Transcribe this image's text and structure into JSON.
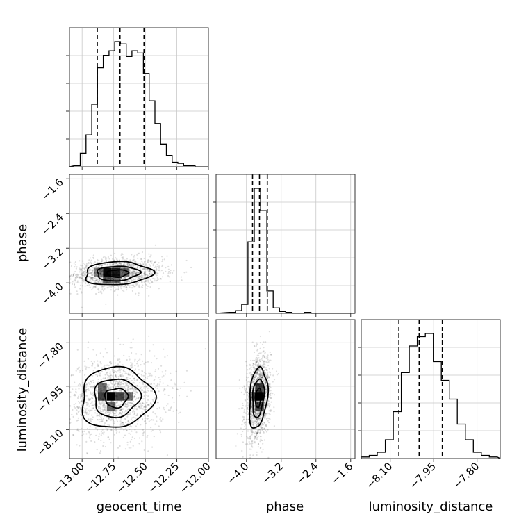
{
  "chart_data": {
    "type": "corner",
    "parameters": [
      {
        "name": "geocent_time",
        "label": "geocent_time",
        "range": [
          -13.1,
          -12.0
        ],
        "ticks": [
          -13.0,
          -12.75,
          -12.5,
          -12.25,
          -12.0
        ],
        "tick_labels": [
          "−13.00",
          "−12.75",
          "−12.50",
          "−12.25",
          "−12.00"
        ]
      },
      {
        "name": "phase",
        "label": "phase",
        "range": [
          -4.7,
          -1.5
        ],
        "ticks": [
          -4.0,
          -3.2,
          -2.4,
          -1.6
        ],
        "tick_labels": [
          "−4.0",
          "−3.2",
          "−2.4",
          "−1.6"
        ]
      },
      {
        "name": "luminosity_distance",
        "label": "luminosity_distance",
        "range": [
          -8.2,
          -7.72
        ],
        "ticks": [
          -8.1,
          -7.95,
          -7.8
        ],
        "tick_labels": [
          "−8.10",
          "−7.95",
          "−7.80"
        ]
      }
    ],
    "marginals": [
      {
        "parameter": "geocent_time",
        "bin_edges_range": [
          -13.06,
          -12.06
        ],
        "counts": [
          1,
          12,
          28,
          55,
          87,
          98,
          102,
          110,
          108,
          97,
          102,
          100,
          82,
          58,
          38,
          20,
          10,
          4,
          3,
          1,
          1,
          0
        ],
        "quantiles": [
          -12.88,
          -12.7,
          -12.51
        ]
      },
      {
        "parameter": "phase",
        "bin_edges_range": [
          -4.4,
          -1.5
        ],
        "counts": [
          1,
          3,
          10,
          80,
          140,
          115,
          25,
          6,
          2,
          1,
          0,
          0,
          1,
          0,
          0,
          0,
          0,
          0,
          0,
          0
        ],
        "quantiles": [
          -3.86,
          -3.7,
          -3.52
        ]
      },
      {
        "parameter": "luminosity_distance",
        "bin_edges_range": [
          -8.2,
          -7.73
        ],
        "counts": [
          1,
          2,
          4,
          12,
          30,
          55,
          72,
          78,
          80,
          62,
          50,
          38,
          22,
          12,
          4,
          2,
          1
        ],
        "quantiles": [
          -8.07,
          -8.0,
          -7.92
        ]
      }
    ],
    "joint": [
      {
        "x": "geocent_time",
        "y": "phase",
        "center": [
          -12.72,
          -3.78
        ],
        "sigma": [
          0.14,
          0.14
        ],
        "corr": 0.1,
        "density_cells": [
          {
            "x": -12.87,
            "y": -3.75,
            "w": 0.38
          },
          {
            "x": -12.8,
            "y": -3.75,
            "w": 0.95
          },
          {
            "x": -12.73,
            "y": -3.75,
            "w": 0.85
          },
          {
            "x": -12.66,
            "y": -3.75,
            "w": 0.45
          },
          {
            "x": -12.8,
            "y": -3.9,
            "w": 0.55
          },
          {
            "x": -12.73,
            "y": -3.9,
            "w": 0.45
          }
        ]
      },
      {
        "x": "geocent_time",
        "y": "luminosity_distance",
        "center": [
          -12.73,
          -7.99
        ],
        "sigma": [
          0.15,
          0.055
        ],
        "corr": 0.05,
        "density_cells": [
          {
            "x": -12.84,
            "y": -7.985,
            "w": 0.7
          },
          {
            "x": -12.77,
            "y": -7.985,
            "w": 1.0
          },
          {
            "x": -12.7,
            "y": -7.985,
            "w": 0.7
          },
          {
            "x": -12.84,
            "y": -7.955,
            "w": 0.5
          },
          {
            "x": -12.63,
            "y": -7.985,
            "w": 0.45
          },
          {
            "x": -12.77,
            "y": -8.02,
            "w": 0.5
          }
        ]
      },
      {
        "x": "phase",
        "y": "luminosity_distance",
        "center": [
          -3.73,
          -7.99
        ],
        "sigma": [
          0.11,
          0.055
        ],
        "corr": 0.25,
        "density_cells": [
          {
            "x": -3.7,
            "y": -7.985,
            "w": 1.0
          },
          {
            "x": -3.7,
            "y": -7.955,
            "w": 0.6
          },
          {
            "x": -3.78,
            "y": -7.985,
            "w": 0.55
          },
          {
            "x": -3.7,
            "y": -8.02,
            "w": 0.6
          }
        ]
      }
    ],
    "grid": true
  }
}
